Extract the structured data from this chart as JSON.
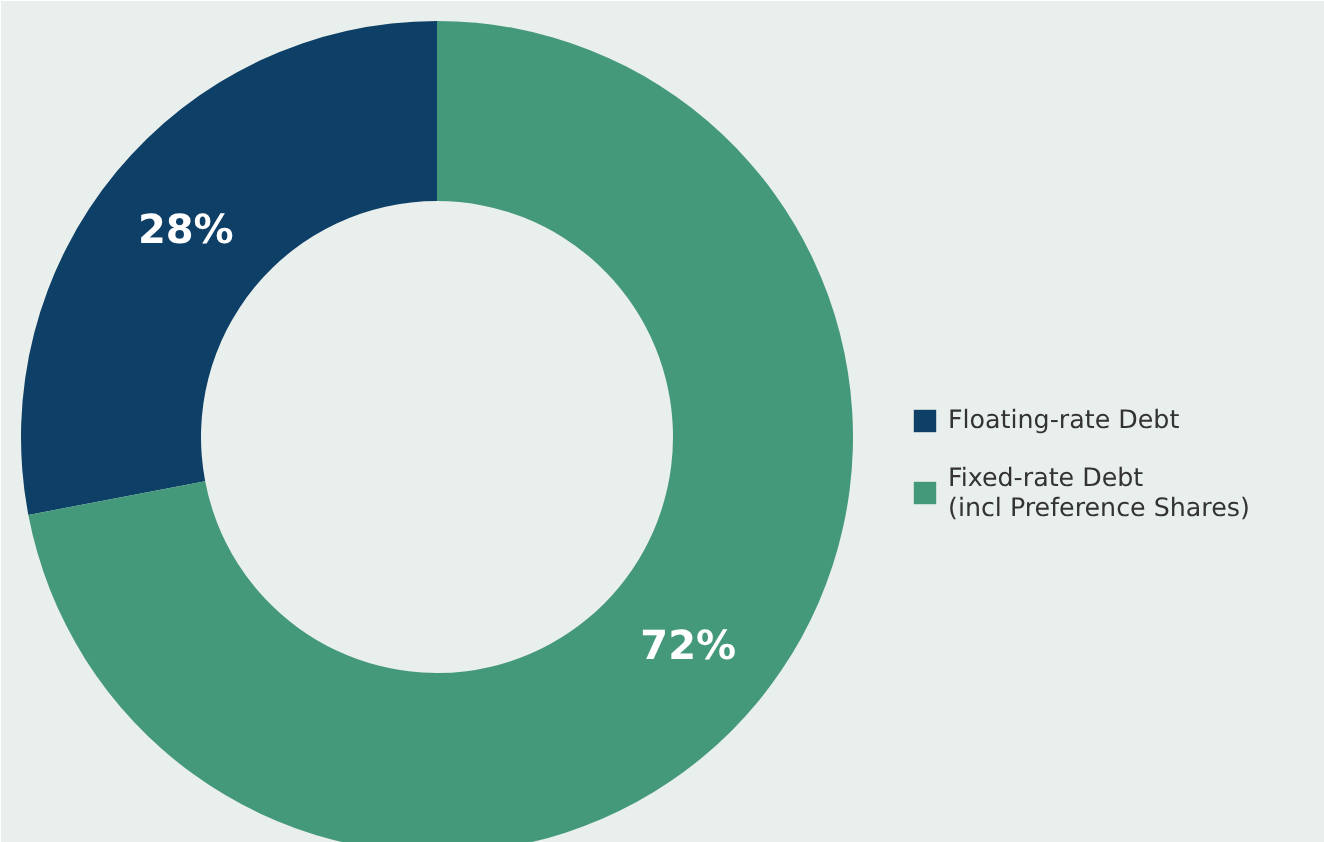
{
  "chart_data": {
    "type": "donut",
    "categories": [
      "Floating-rate Debt",
      "Fixed-rate Debt\n(incl Preference Shares)"
    ],
    "values": [
      28,
      72
    ],
    "colors": [
      "#0e3f66",
      "#45997b"
    ],
    "value_labels": [
      "28%",
      "72%"
    ],
    "legend": "right"
  }
}
